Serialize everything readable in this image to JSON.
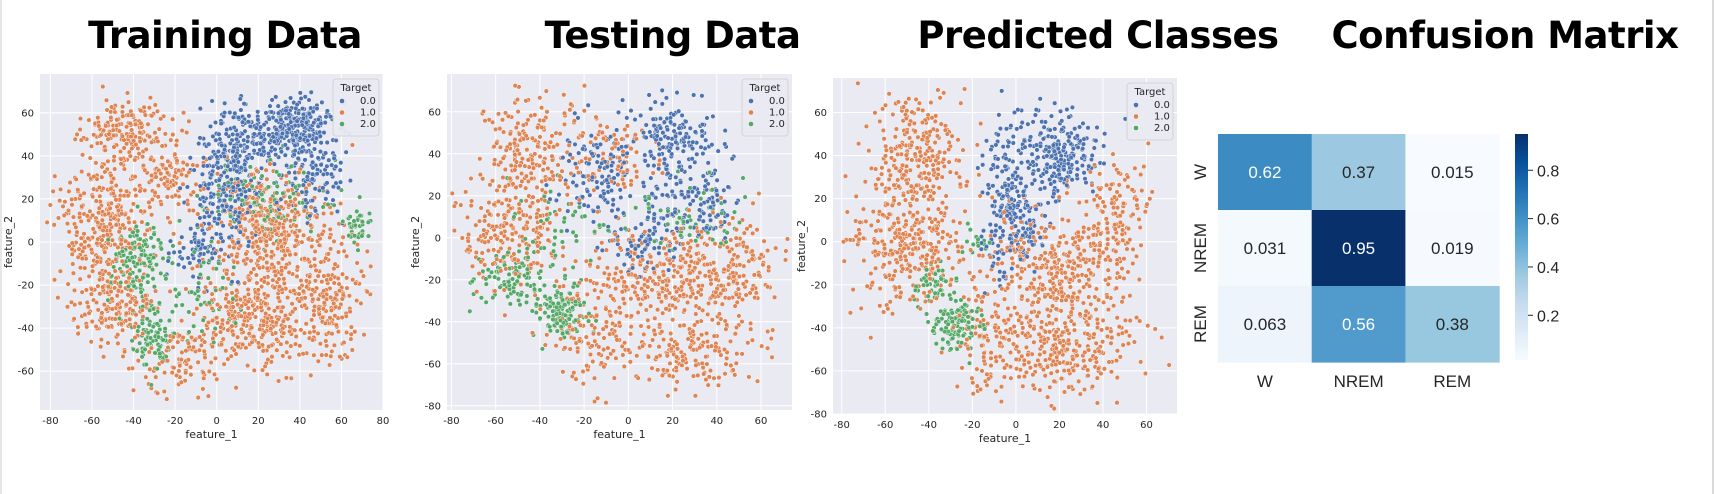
{
  "panels": {
    "training": {
      "title": "Training Data"
    },
    "testing": {
      "title": "Testing Data"
    },
    "predicted": {
      "title": "Predicted Classes"
    },
    "confusion": {
      "title": "Confusion Matrix"
    }
  },
  "colors": {
    "class_0": "#4c72b0",
    "class_1": "#dd8452",
    "class_2": "#55a868",
    "axes_bg": "#eaeaf2",
    "grid": "#ffffff"
  },
  "chart_data": [
    {
      "type": "scatter",
      "title": "Training Data",
      "xlabel": "feature_1",
      "ylabel": "feature_2",
      "xlim": [
        -85,
        80
      ],
      "ylim": [
        -78,
        78
      ],
      "xticks": [
        -80,
        -60,
        -40,
        -20,
        0,
        20,
        40,
        60,
        80
      ],
      "yticks": [
        -60,
        -40,
        -20,
        0,
        20,
        40,
        60
      ],
      "grid": true,
      "legend": {
        "title": "Target",
        "placement": "top-right",
        "entries": [
          "0.0",
          "1.0",
          "2.0"
        ]
      },
      "clusters": [
        {
          "class": 0,
          "x": 38,
          "y": 52,
          "sx": 10,
          "sy": 7,
          "n": 320
        },
        {
          "class": 0,
          "x": 10,
          "y": 45,
          "sx": 8,
          "sy": 10,
          "n": 180
        },
        {
          "class": 0,
          "x": 2,
          "y": 18,
          "sx": 8,
          "sy": 12,
          "n": 150
        },
        {
          "class": 0,
          "x": 48,
          "y": 28,
          "sx": 8,
          "sy": 8,
          "n": 90
        },
        {
          "class": 0,
          "x": -8,
          "y": -5,
          "sx": 6,
          "sy": 8,
          "n": 60
        },
        {
          "class": 1,
          "x": -45,
          "y": 52,
          "sx": 10,
          "sy": 8,
          "n": 160
        },
        {
          "class": 1,
          "x": -55,
          "y": 10,
          "sx": 12,
          "sy": 14,
          "n": 320
        },
        {
          "class": 1,
          "x": -50,
          "y": -30,
          "sx": 10,
          "sy": 10,
          "n": 180
        },
        {
          "class": 1,
          "x": 25,
          "y": 5,
          "sx": 14,
          "sy": 14,
          "n": 400
        },
        {
          "class": 1,
          "x": 20,
          "y": -35,
          "sx": 14,
          "sy": 12,
          "n": 350
        },
        {
          "class": 1,
          "x": 55,
          "y": -25,
          "sx": 8,
          "sy": 14,
          "n": 160
        },
        {
          "class": 1,
          "x": -15,
          "y": -55,
          "sx": 10,
          "sy": 8,
          "n": 90
        },
        {
          "class": 1,
          "x": -25,
          "y": 30,
          "sx": 8,
          "sy": 10,
          "n": 110
        },
        {
          "class": 2,
          "x": -38,
          "y": -10,
          "sx": 7,
          "sy": 10,
          "n": 140
        },
        {
          "class": 2,
          "x": -30,
          "y": -45,
          "sx": 5,
          "sy": 7,
          "n": 90
        },
        {
          "class": 2,
          "x": 25,
          "y": 20,
          "sx": 14,
          "sy": 10,
          "n": 120
        },
        {
          "class": 2,
          "x": 68,
          "y": 8,
          "sx": 3,
          "sy": 4,
          "n": 40
        },
        {
          "class": 2,
          "x": -5,
          "y": -25,
          "sx": 8,
          "sy": 10,
          "n": 50
        }
      ]
    },
    {
      "type": "scatter",
      "title": "Testing Data",
      "xlabel": "feature_1",
      "ylabel": "feature_2",
      "xlim": [
        -82,
        74
      ],
      "ylim": [
        -82,
        78
      ],
      "xticks": [
        -80,
        -60,
        -40,
        -20,
        0,
        20,
        40,
        60
      ],
      "yticks": [
        -80,
        -60,
        -40,
        -20,
        0,
        20,
        40,
        60
      ],
      "grid": true,
      "legend": {
        "title": "Target",
        "placement": "top-right",
        "entries": [
          "0.0",
          "1.0",
          "2.0"
        ]
      },
      "clusters": [
        {
          "class": 0,
          "x": 20,
          "y": 45,
          "sx": 10,
          "sy": 10,
          "n": 180
        },
        {
          "class": 0,
          "x": -15,
          "y": 30,
          "sx": 8,
          "sy": 12,
          "n": 110
        },
        {
          "class": 0,
          "x": 30,
          "y": 15,
          "sx": 10,
          "sy": 10,
          "n": 110
        },
        {
          "class": 0,
          "x": 5,
          "y": -2,
          "sx": 8,
          "sy": 8,
          "n": 80
        },
        {
          "class": 1,
          "x": -45,
          "y": 40,
          "sx": 12,
          "sy": 14,
          "n": 220
        },
        {
          "class": 1,
          "x": -55,
          "y": 0,
          "sx": 12,
          "sy": 12,
          "n": 200
        },
        {
          "class": 1,
          "x": 20,
          "y": -20,
          "sx": 18,
          "sy": 12,
          "n": 340
        },
        {
          "class": 1,
          "x": 30,
          "y": -55,
          "sx": 16,
          "sy": 8,
          "n": 160
        },
        {
          "class": 1,
          "x": -15,
          "y": -45,
          "sx": 10,
          "sy": 14,
          "n": 120
        },
        {
          "class": 1,
          "x": 50,
          "y": -15,
          "sx": 8,
          "sy": 14,
          "n": 100
        },
        {
          "class": 1,
          "x": -5,
          "y": 40,
          "sx": 10,
          "sy": 10,
          "n": 80
        },
        {
          "class": 2,
          "x": -30,
          "y": -35,
          "sx": 6,
          "sy": 6,
          "n": 120
        },
        {
          "class": 2,
          "x": -55,
          "y": -20,
          "sx": 8,
          "sy": 6,
          "n": 90
        },
        {
          "class": 2,
          "x": 30,
          "y": 10,
          "sx": 12,
          "sy": 8,
          "n": 60
        },
        {
          "class": 2,
          "x": -30,
          "y": 5,
          "sx": 10,
          "sy": 10,
          "n": 50
        }
      ]
    },
    {
      "type": "scatter",
      "title": "Predicted Classes",
      "xlabel": "feature_1",
      "ylabel": "feature_2",
      "xlim": [
        -84,
        74
      ],
      "ylim": [
        -80,
        76
      ],
      "xticks": [
        -80,
        -60,
        -40,
        -20,
        0,
        20,
        40,
        60
      ],
      "yticks": [
        -80,
        -60,
        -40,
        -20,
        0,
        20,
        40,
        60
      ],
      "grid": true,
      "legend": {
        "title": "Target",
        "placement": "top-right",
        "entries": [
          "0.0",
          "1.0",
          "2.0"
        ]
      },
      "clusters": [
        {
          "class": 0,
          "x": 20,
          "y": 40,
          "sx": 10,
          "sy": 10,
          "n": 240
        },
        {
          "class": 0,
          "x": -5,
          "y": 20,
          "sx": 5,
          "sy": 18,
          "n": 170
        },
        {
          "class": 0,
          "x": 5,
          "y": 5,
          "sx": 5,
          "sy": 8,
          "n": 70
        },
        {
          "class": 1,
          "x": -45,
          "y": 40,
          "sx": 12,
          "sy": 14,
          "n": 240
        },
        {
          "class": 1,
          "x": -50,
          "y": 0,
          "sx": 14,
          "sy": 14,
          "n": 320
        },
        {
          "class": 1,
          "x": 20,
          "y": -15,
          "sx": 16,
          "sy": 14,
          "n": 380
        },
        {
          "class": 1,
          "x": 25,
          "y": -50,
          "sx": 16,
          "sy": 10,
          "n": 230
        },
        {
          "class": 1,
          "x": -10,
          "y": -45,
          "sx": 10,
          "sy": 12,
          "n": 130
        },
        {
          "class": 1,
          "x": 45,
          "y": 15,
          "sx": 8,
          "sy": 12,
          "n": 110
        },
        {
          "class": 2,
          "x": -28,
          "y": -38,
          "sx": 5,
          "sy": 6,
          "n": 120
        },
        {
          "class": 2,
          "x": -38,
          "y": -20,
          "sx": 5,
          "sy": 4,
          "n": 40
        },
        {
          "class": 2,
          "x": -20,
          "y": 0,
          "sx": 3,
          "sy": 4,
          "n": 15
        }
      ]
    },
    {
      "type": "heatmap",
      "title": "Confusion Matrix",
      "row_labels": [
        "W",
        "NREM",
        "REM"
      ],
      "col_labels": [
        "W",
        "NREM",
        "REM"
      ],
      "values": [
        [
          0.62,
          0.37,
          0.015
        ],
        [
          0.031,
          0.95,
          0.019
        ],
        [
          0.063,
          0.56,
          0.38
        ]
      ],
      "value_labels": [
        [
          "0.62",
          "0.37",
          "0.015"
        ],
        [
          "0.031",
          "0.95",
          "0.019"
        ],
        [
          "0.063",
          "0.56",
          "0.38"
        ]
      ],
      "colormap": "Blues",
      "colorbar": {
        "ticks": [
          0.2,
          0.4,
          0.6,
          0.8
        ],
        "tick_labels": [
          "0.2",
          "0.4",
          "0.6",
          "0.8"
        ],
        "range": [
          0.015,
          0.95
        ]
      }
    }
  ]
}
